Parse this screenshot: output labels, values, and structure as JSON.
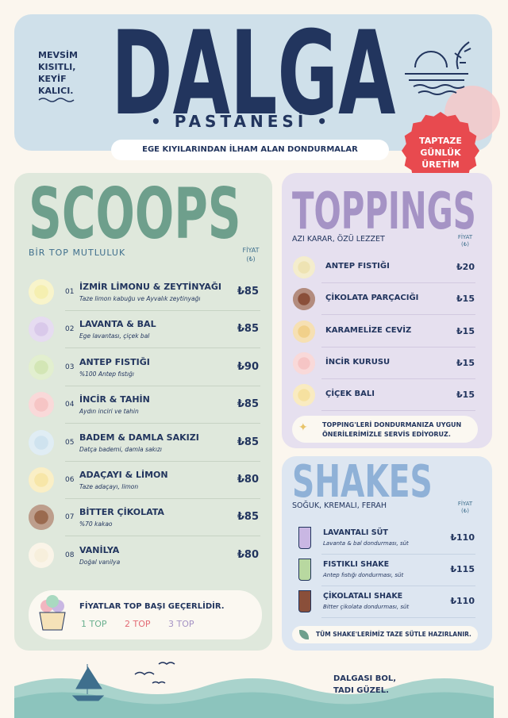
{
  "header": {
    "tagline": [
      "MEVSİM",
      "KISITLI,",
      "KEYİF",
      "KALICI."
    ],
    "title": "DALGA",
    "subtitle": "PASTANESİ",
    "banner": "EGE KIYILARINDAN İLHAM ALAN DONDURMALAR",
    "badge": [
      "TAPTAZE",
      "GÜNLÜK",
      "ÜRETİM"
    ]
  },
  "scoops": {
    "title": "SCOOPS",
    "subtitle": "BİR TOP MUTLULUK",
    "price_header": "FİYAT",
    "price_unit": "(₺)",
    "items": [
      {
        "number": "01",
        "name": "İZMİR LİMONU & ZEYTİNYAĞI",
        "description": "Taze limon kabuğu ve Ayvalık zeytinyağı",
        "price": "₺85"
      },
      {
        "number": "02",
        "name": "LAVANTA & BAL",
        "description": "Ege lavantası, çiçek bal",
        "price": "₺85"
      },
      {
        "number": "03",
        "name": "ANTEP FISTIĞI",
        "description": "%100 Antep fıstığı",
        "price": "₺90"
      },
      {
        "number": "04",
        "name": "İNCİR & TAHİN",
        "description": "Aydın inciri ve tahin",
        "price": "₺85"
      },
      {
        "number": "05",
        "name": "BADEM & DAMLA SAKIZI",
        "description": "Datça bademi, damla sakızı",
        "price": "₺85"
      },
      {
        "number": "06",
        "name": "ADAÇAYI & LİMON",
        "description": "Taze adaçayı, limon",
        "price": "₺80"
      },
      {
        "number": "07",
        "name": "BİTTER ÇİKOLATA",
        "description": "%70 kakao",
        "price": "₺85"
      },
      {
        "number": "08",
        "name": "VANİLYA",
        "description": "Doğal vanilya",
        "price": "₺80"
      }
    ],
    "note": "FİYATLAR TOP BAŞI GEÇERLİDİR.",
    "sizes": [
      "1 TOP",
      "2 TOP",
      "3 TOP"
    ]
  },
  "toppings": {
    "title": "TOPPINGS",
    "subtitle": "AZI KARAR, ÖZÜ LEZZET",
    "price_header": "FİYAT",
    "price_unit": "(₺)",
    "items": [
      {
        "name": "ANTEP FISTIĞI",
        "price": "₺20"
      },
      {
        "name": "ÇİKOLATA PARÇACIĞI",
        "price": "₺15"
      },
      {
        "name": "KARAMELİZE CEVİZ",
        "price": "₺15"
      },
      {
        "name": "İNCİR KURUSU",
        "price": "₺15"
      },
      {
        "name": "ÇİÇEK BALI",
        "price": "₺15"
      }
    ],
    "note": "TOPPING'LERİ DONDURMANIZA UYGUN ÖNERİLERİMİZLE SERVİS EDİYORUZ."
  },
  "shakes": {
    "title": "SHAKES",
    "subtitle": "SOĞUK, KREMALI, FERAH",
    "price_header": "FİYAT",
    "price_unit": "(₺)",
    "items": [
      {
        "name": "LAVANTALI SÜT",
        "description": "Lavanta & bal dondurması, süt",
        "price": "₺110"
      },
      {
        "name": "FISTIKLI SHAKE",
        "description": "Antep fıstığı dondurması, süt",
        "price": "₺115"
      },
      {
        "name": "ÇİKOLATALI SHAKE",
        "description": "Bitter çikolata dondurması, süt",
        "price": "₺110"
      }
    ],
    "note": "TÜM SHAKE'LERİMİZ TAZE SÜTLE HAZIRLANIR."
  },
  "footer": {
    "lines": [
      "DALGASI BOL,",
      "TADI GÜZEL."
    ]
  }
}
